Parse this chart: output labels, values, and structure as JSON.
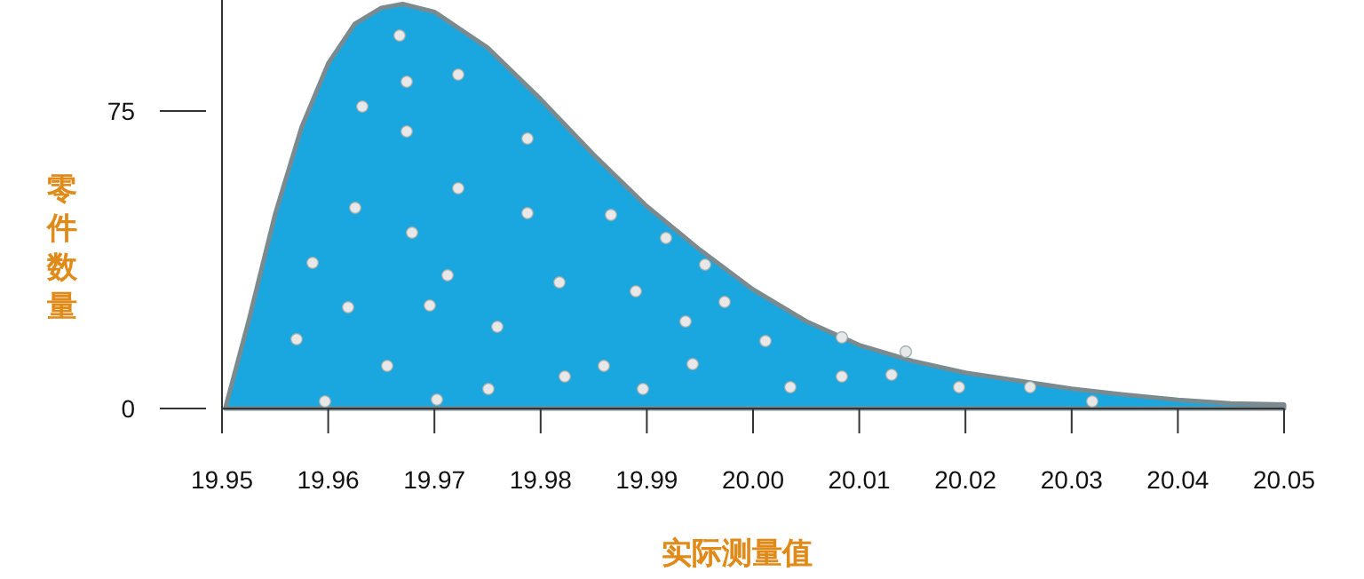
{
  "chart_data": {
    "type": "area",
    "xlabel": "实际测量值",
    "ylabel": "零件数量",
    "x": [
      19.9503,
      19.9525,
      19.955,
      19.9575,
      19.96,
      19.9625,
      19.965,
      19.967,
      19.97,
      19.975,
      19.98,
      19.985,
      19.99,
      19.995,
      20.0,
      20.005,
      20.01,
      20.015,
      20.02,
      20.025,
      20.03,
      20.035,
      20.04,
      20.045,
      20.05
    ],
    "series": [
      {
        "color": "#1aa7e0",
        "values": [
          0,
          22,
          49,
          71,
          87,
          97,
          101,
          102,
          100,
          91,
          78,
          64,
          51,
          40,
          30,
          22,
          16,
          12,
          9,
          7,
          5,
          3.5,
          2.2,
          1.3,
          1
        ]
      }
    ],
    "xlim": [
      19.95,
      20.05
    ],
    "ylim": [
      0,
      103
    ],
    "xticks": [
      19.95,
      19.96,
      19.97,
      19.98,
      19.99,
      {
        "value": 20.0,
        "label": "20.00"
      },
      20.01,
      20.02,
      20.03,
      20.04,
      20.05
    ],
    "yticks": [
      0,
      75
    ],
    "grid": false
  }
}
